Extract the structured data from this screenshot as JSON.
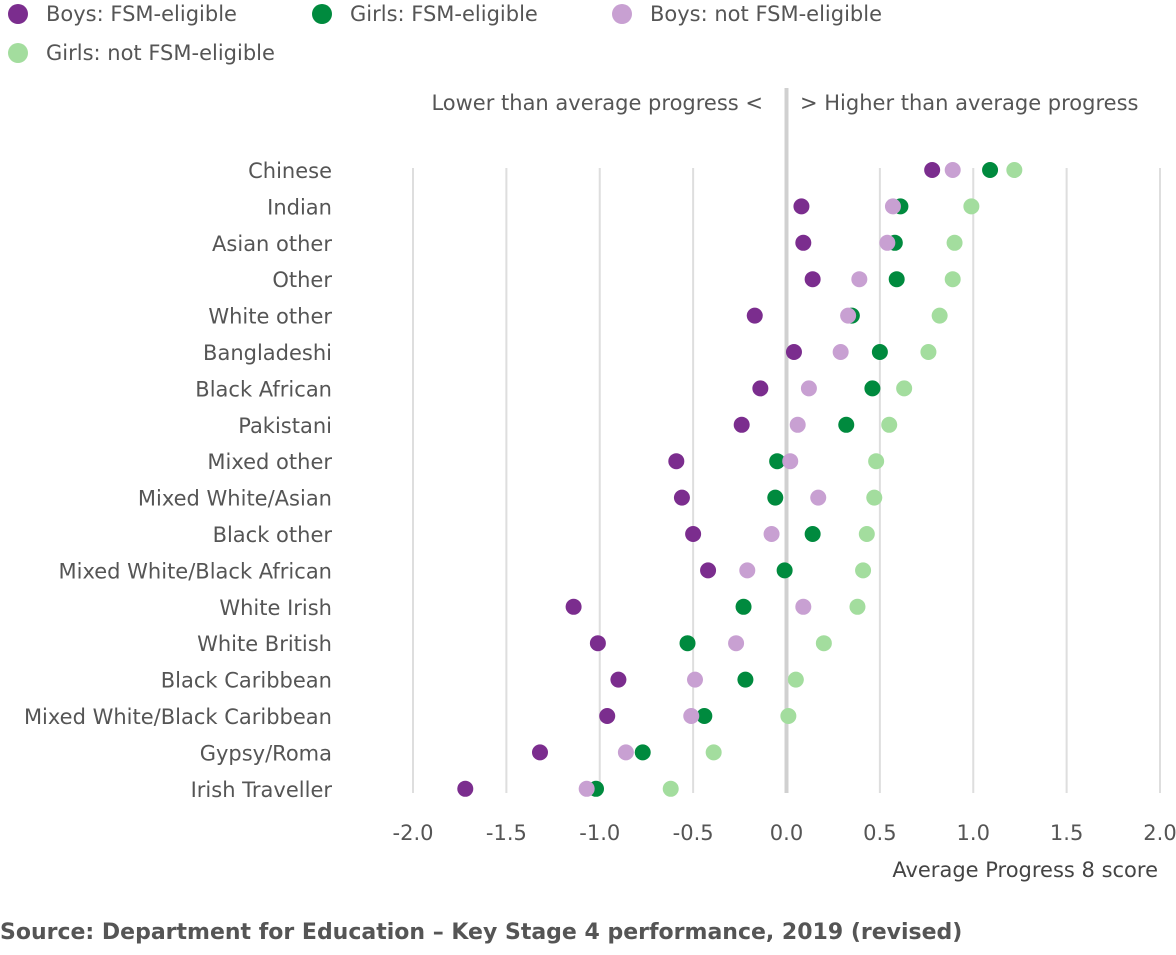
{
  "legend": [
    {
      "label": "Boys: FSM-eligible",
      "color": "#7b2d8e"
    },
    {
      "label": "Girls: FSM-eligible",
      "color": "#008a3e"
    },
    {
      "label": "Boys: not FSM-eligible",
      "color": "#c8a0d2"
    },
    {
      "label": "Girls: not FSM-eligible",
      "color": "#a3dd9e"
    }
  ],
  "annotations": {
    "left": "Lower than average progress <",
    "right": "> Higher than average progress"
  },
  "source": "Source: Department for Education – Key Stage 4 performance, 2019 (revised)",
  "chart_data": {
    "type": "scatter",
    "xlabel": "Average Progress 8 score",
    "xlim": [
      -2.0,
      2.0
    ],
    "xticks": [
      "-2.0",
      "-1.5",
      "-1.0",
      "-0.5",
      "0.0",
      "0.5",
      "1.0",
      "1.5",
      "2.0"
    ],
    "grid": "vertical",
    "legend_position": "top",
    "categories": [
      "Chinese",
      "Indian",
      "Asian other",
      "Other",
      "White other",
      "Bangladeshi",
      "Black African",
      "Pakistani",
      "Mixed other",
      "Mixed White/Asian",
      "Black other",
      "Mixed White/Black African",
      "White Irish",
      "White British",
      "Black Caribbean",
      "Mixed White/Black Caribbean",
      "Gypsy/Roma",
      "Irish Traveller"
    ],
    "series": [
      {
        "name": "Boys: FSM-eligible",
        "color": "#7b2d8e",
        "values": [
          0.78,
          0.08,
          0.09,
          0.14,
          -0.17,
          0.04,
          -0.14,
          -0.24,
          -0.59,
          -0.56,
          -0.5,
          -0.42,
          -1.14,
          -1.01,
          -0.9,
          -0.96,
          -1.32,
          -1.72
        ]
      },
      {
        "name": "Girls: FSM-eligible",
        "color": "#008a3e",
        "values": [
          1.09,
          0.61,
          0.58,
          0.59,
          0.35,
          0.5,
          0.46,
          0.32,
          -0.05,
          -0.06,
          0.14,
          -0.01,
          -0.23,
          -0.53,
          -0.22,
          -0.44,
          -0.77,
          -1.02
        ]
      },
      {
        "name": "Boys: not FSM-eligible",
        "color": "#c8a0d2",
        "values": [
          0.89,
          0.57,
          0.54,
          0.39,
          0.33,
          0.29,
          0.12,
          0.06,
          0.02,
          0.17,
          -0.08,
          -0.21,
          0.09,
          -0.27,
          -0.49,
          -0.51,
          -0.86,
          -1.07
        ]
      },
      {
        "name": "Girls: not FSM-eligible",
        "color": "#a3dd9e",
        "values": [
          1.22,
          0.99,
          0.9,
          0.89,
          0.82,
          0.76,
          0.63,
          0.55,
          0.48,
          0.47,
          0.43,
          0.41,
          0.38,
          0.2,
          0.05,
          0.01,
          -0.39,
          -0.62
        ]
      }
    ]
  }
}
